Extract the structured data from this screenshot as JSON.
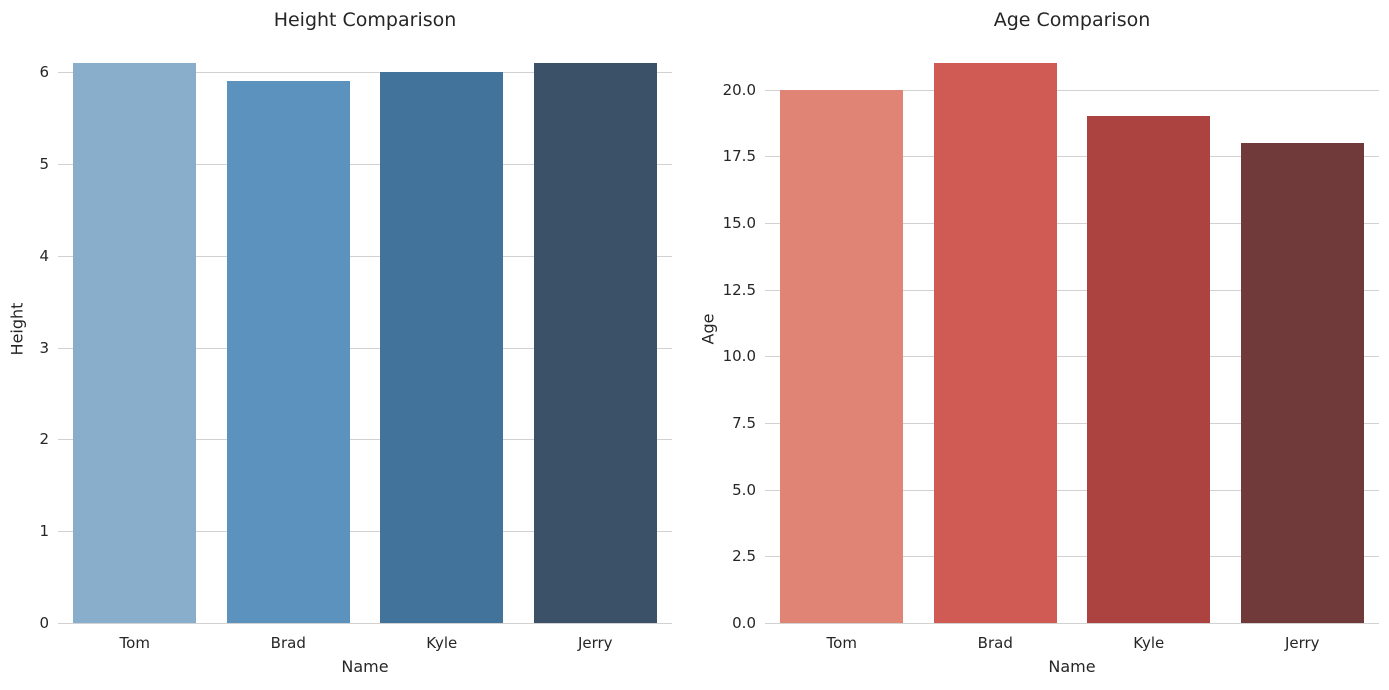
{
  "styles": {
    "background": "#ffffff",
    "grid_color": "#d2d2d2",
    "text_color": "#262626"
  },
  "chart_data": [
    {
      "type": "bar",
      "title": "Height Comparison",
      "xlabel": "Name",
      "ylabel": "Height",
      "categories": [
        "Tom",
        "Brad",
        "Kyle",
        "Jerry"
      ],
      "values": [
        6.1,
        5.9,
        6.0,
        6.1
      ],
      "bar_colors": [
        "#88aecb",
        "#5c93be",
        "#42749b",
        "#3a5168"
      ],
      "yticks": [
        0,
        1,
        2,
        3,
        4,
        5,
        6
      ],
      "ytick_labels": [
        "0",
        "1",
        "2",
        "3",
        "4",
        "5",
        "6"
      ],
      "ylim": [
        0,
        6.405
      ],
      "bar_rel_width": 0.8,
      "grid": true,
      "legend": null
    },
    {
      "type": "bar",
      "title": "Age Comparison",
      "xlabel": "Name",
      "ylabel": "Age",
      "categories": [
        "Tom",
        "Brad",
        "Kyle",
        "Jerry"
      ],
      "values": [
        20,
        21,
        19,
        18
      ],
      "bar_colors": [
        "#e08575",
        "#d05b54",
        "#ac4340",
        "#6f3a39"
      ],
      "yticks": [
        0,
        2.5,
        5,
        7.5,
        10,
        12.5,
        15,
        17.5,
        20
      ],
      "ytick_labels": [
        "0.0",
        "2.5",
        "5.0",
        "7.5",
        "10.0",
        "12.5",
        "15.0",
        "17.5",
        "20.0"
      ],
      "ylim": [
        0,
        22.05
      ],
      "bar_rel_width": 0.8,
      "grid": true,
      "legend": null
    }
  ]
}
